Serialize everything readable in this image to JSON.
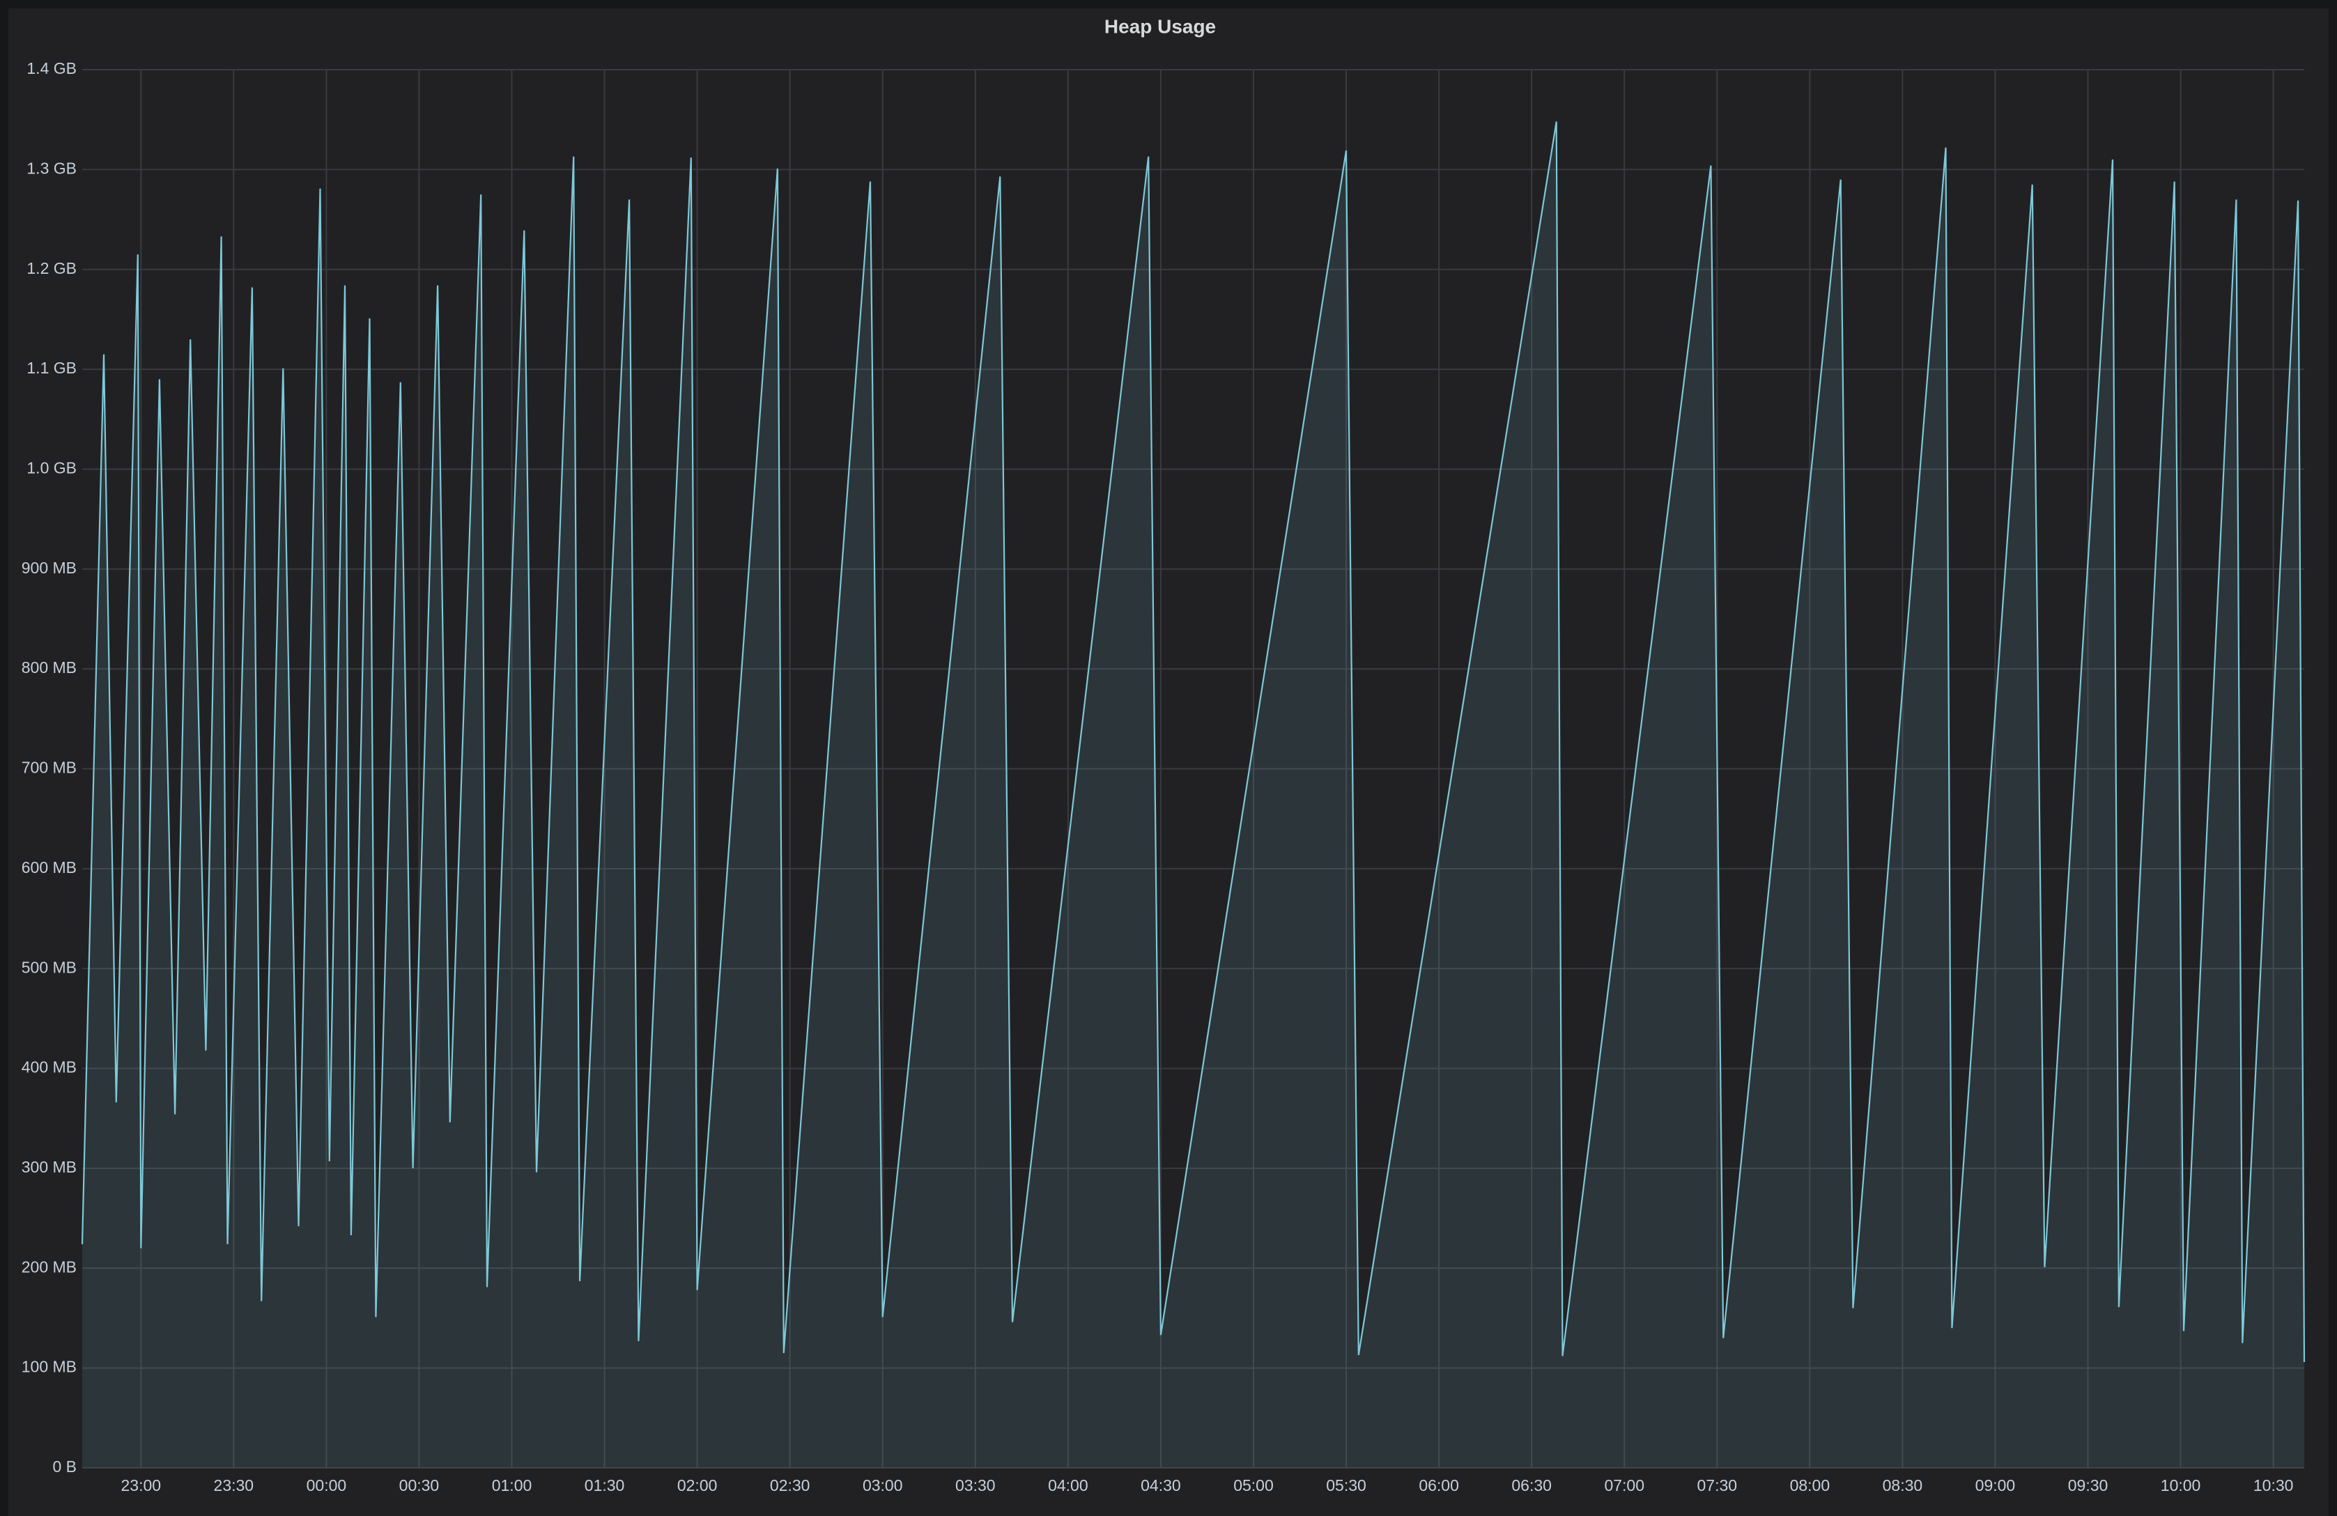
{
  "chart_data": {
    "type": "area",
    "title": "Heap Usage",
    "x": [
      "22:41",
      "22:48",
      "22:52",
      "22:59",
      "23:00",
      "23:06",
      "23:11",
      "23:16",
      "23:21",
      "23:26",
      "23:28",
      "23:36",
      "23:39",
      "23:46",
      "23:51",
      "23:58",
      "00:01",
      "00:06",
      "00:08",
      "00:14",
      "00:16",
      "00:24",
      "00:28",
      "00:36",
      "00:40",
      "00:50",
      "00:52",
      "01:04",
      "01:08",
      "01:20",
      "01:22",
      "01:38",
      "01:41",
      "01:58",
      "02:00",
      "02:26",
      "02:28",
      "02:56",
      "03:00",
      "03:38",
      "03:42",
      "04:26",
      "04:30",
      "05:30",
      "05:34",
      "06:38",
      "06:40",
      "07:28",
      "07:32",
      "08:10",
      "08:14",
      "08:44",
      "08:46",
      "09:12",
      "09:16",
      "09:38",
      "09:40",
      "09:58",
      "10:01",
      "10:18",
      "10:20",
      "10:38",
      "10:40"
    ],
    "values": [
      224,
      1115,
      366,
      1215,
      220,
      1090,
      354,
      1130,
      418,
      1233,
      224,
      1182,
      167,
      1101,
      242,
      1281,
      307,
      1184,
      233,
      1151,
      151,
      1087,
      300,
      1184,
      346,
      1275,
      181,
      1239,
      296,
      1313,
      187,
      1270,
      127,
      1312,
      178,
      1301,
      115,
      1288,
      151,
      1293,
      146,
      1313,
      133,
      1319,
      113,
      1348,
      112,
      1304,
      130,
      1290,
      160,
      1322,
      140,
      1285,
      201,
      1310,
      161,
      1288,
      137,
      1270,
      125,
      1269,
      106
    ],
    "color": "#7ec8d8",
    "xlim": [
      "22:41",
      "10:40"
    ],
    "xticks": [
      "23:00",
      "23:30",
      "00:00",
      "00:30",
      "01:00",
      "01:30",
      "02:00",
      "02:30",
      "03:00",
      "03:30",
      "04:00",
      "04:30",
      "05:00",
      "05:30",
      "06:00",
      "06:30",
      "07:00",
      "07:30",
      "08:00",
      "08:30",
      "09:00",
      "09:30",
      "10:00",
      "10:30"
    ],
    "ylim": [
      0,
      1400
    ],
    "yticks": [
      {
        "value": 0,
        "label": "0 B"
      },
      {
        "value": 100,
        "label": "100 MB"
      },
      {
        "value": 200,
        "label": "200 MB"
      },
      {
        "value": 300,
        "label": "300 MB"
      },
      {
        "value": 400,
        "label": "400 MB"
      },
      {
        "value": 500,
        "label": "500 MB"
      },
      {
        "value": 600,
        "label": "600 MB"
      },
      {
        "value": 700,
        "label": "700 MB"
      },
      {
        "value": 800,
        "label": "800 MB"
      },
      {
        "value": 900,
        "label": "900 MB"
      },
      {
        "value": 1000,
        "label": "1.0 GB"
      },
      {
        "value": 1100,
        "label": "1.1 GB"
      },
      {
        "value": 1200,
        "label": "1.2 GB"
      },
      {
        "value": 1300,
        "label": "1.3 GB"
      },
      {
        "value": 1400,
        "label": "1.4 GB"
      }
    ],
    "grid": true
  }
}
